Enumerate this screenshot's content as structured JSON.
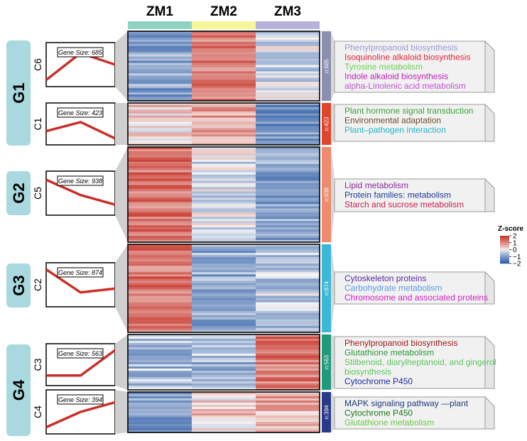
{
  "chart_data": {
    "type": "heatmap",
    "samples": [
      "ZM1",
      "ZM2",
      "ZM3"
    ],
    "sample_colors": [
      "#8fd3c4",
      "#f7f79a",
      "#b7b2dc"
    ],
    "color_scale": {
      "title": "Z-score",
      "min": -2,
      "max": 2,
      "ticks": [
        2,
        1,
        0,
        -1,
        -2
      ],
      "low_color": "#2a5aa6",
      "mid_color": "#f7f7f7",
      "high_color": "#c83226"
    },
    "groups": [
      {
        "label": "G1",
        "clusters": [
          "C6",
          "C1"
        ]
      },
      {
        "label": "G2",
        "clusters": [
          "C5"
        ]
      },
      {
        "label": "G3",
        "clusters": [
          "C2"
        ]
      },
      {
        "label": "G4",
        "clusters": [
          "C3",
          "C4"
        ]
      }
    ],
    "clusters": [
      {
        "id": "C6",
        "gene_size": 685,
        "gene_size_label": "Gene Size: 685",
        "n_label": "n:685",
        "bar_color": "#8a8fb0",
        "profile": [
          0.2,
          1.6,
          1.0
        ],
        "mean_z": [
          -0.9,
          1.1,
          -0.3
        ],
        "terms": [
          {
            "text": "Phenylpropanoid biosynthesis",
            "color": "#9a9ad8"
          },
          {
            "text": "Isoquinoline alkaloid biosynthesis",
            "color": "#e0253a"
          },
          {
            "text": "Tyrosine metabolism",
            "color": "#6fce57"
          },
          {
            "text": "Indole alkaloid biosynthesis",
            "color": "#c021b8"
          },
          {
            "text": "alpha-Linolenic  acid metabolism",
            "color": "#c056d0"
          }
        ]
      },
      {
        "id": "C1",
        "gene_size": 423,
        "gene_size_label": "Gene Size: 423",
        "n_label": "n:423",
        "bar_color": "#e0452c",
        "profile": [
          0.6,
          1.1,
          0.2
        ],
        "mean_z": [
          0.3,
          0.8,
          -1.1
        ],
        "terms": [
          {
            "text": "Plant hormone signal transduction",
            "color": "#3aa33a"
          },
          {
            "text": "Environmental adaptation",
            "color": "#6b4a2a"
          },
          {
            "text": "Plant–pathogen interaction",
            "color": "#1fb6c7"
          }
        ]
      },
      {
        "id": "C5",
        "gene_size": 938,
        "gene_size_label": "Gene Size: 938",
        "n_label": "n:938",
        "bar_color": "#f08a6a",
        "profile": [
          1.7,
          0.9,
          0.4
        ],
        "mean_z": [
          1.2,
          -0.2,
          -0.9
        ],
        "terms": [
          {
            "text": "Lipid metabolism",
            "color": "#8a2a9a"
          },
          {
            "text": "Protein families: metabolism",
            "color": "#1f3a9a"
          },
          {
            "text": "Starch and sucrose metabolism",
            "color": "#c81e4a"
          }
        ]
      },
      {
        "id": "C2",
        "gene_size": 874,
        "gene_size_label": "Gene Size: 874",
        "n_label": "n:874",
        "bar_color": "#3ab8d8",
        "profile": [
          1.8,
          0.6,
          0.8
        ],
        "mean_z": [
          1.2,
          -0.8,
          -0.4
        ],
        "terms": [
          {
            "text": "Cytoskeleton proteins",
            "color": "#5a2aa0"
          },
          {
            "text": "Carbohydrate metabolism",
            "color": "#5a9ae0"
          },
          {
            "text": "Chromosome and associated proteins",
            "color": "#d01ec8"
          }
        ]
      },
      {
        "id": "C3",
        "gene_size": 563,
        "gene_size_label": "Gene Size: 563",
        "n_label": "n:563",
        "bar_color": "#1f9a7a",
        "profile": [
          0.4,
          0.4,
          1.8
        ],
        "mean_z": [
          -0.6,
          -0.6,
          1.2
        ],
        "terms": [
          {
            "text": "Phenylpropanoid biosynthesis",
            "color": "#9a1a1a"
          },
          {
            "text": "Glutathione metabolism",
            "color": "#2a9a3a"
          },
          {
            "text": "Stilbenoid, diarylheptanoid, and gingerol",
            "color": "#5ac85a"
          },
          {
            "text": "biosynthesis",
            "color": "#5ac85a"
          },
          {
            "text": "Cytochrome P450",
            "color": "#1a2aa0"
          }
        ]
      },
      {
        "id": "C4",
        "gene_size": 394,
        "gene_size_label": "Gene Size: 394",
        "n_label": "n:394",
        "bar_color": "#2a3a8a",
        "profile": [
          0.2,
          1.0,
          1.5
        ],
        "mean_z": [
          -1.0,
          0.3,
          0.6
        ],
        "terms": [
          {
            "text": "MAPK signaling pathway —plant",
            "color": "#1f3a7a"
          },
          {
            "text": "Cytochrome P450",
            "color": "#1a7a1a"
          },
          {
            "text": "Glutathione metabolism",
            "color": "#6ac84a"
          }
        ]
      }
    ]
  }
}
